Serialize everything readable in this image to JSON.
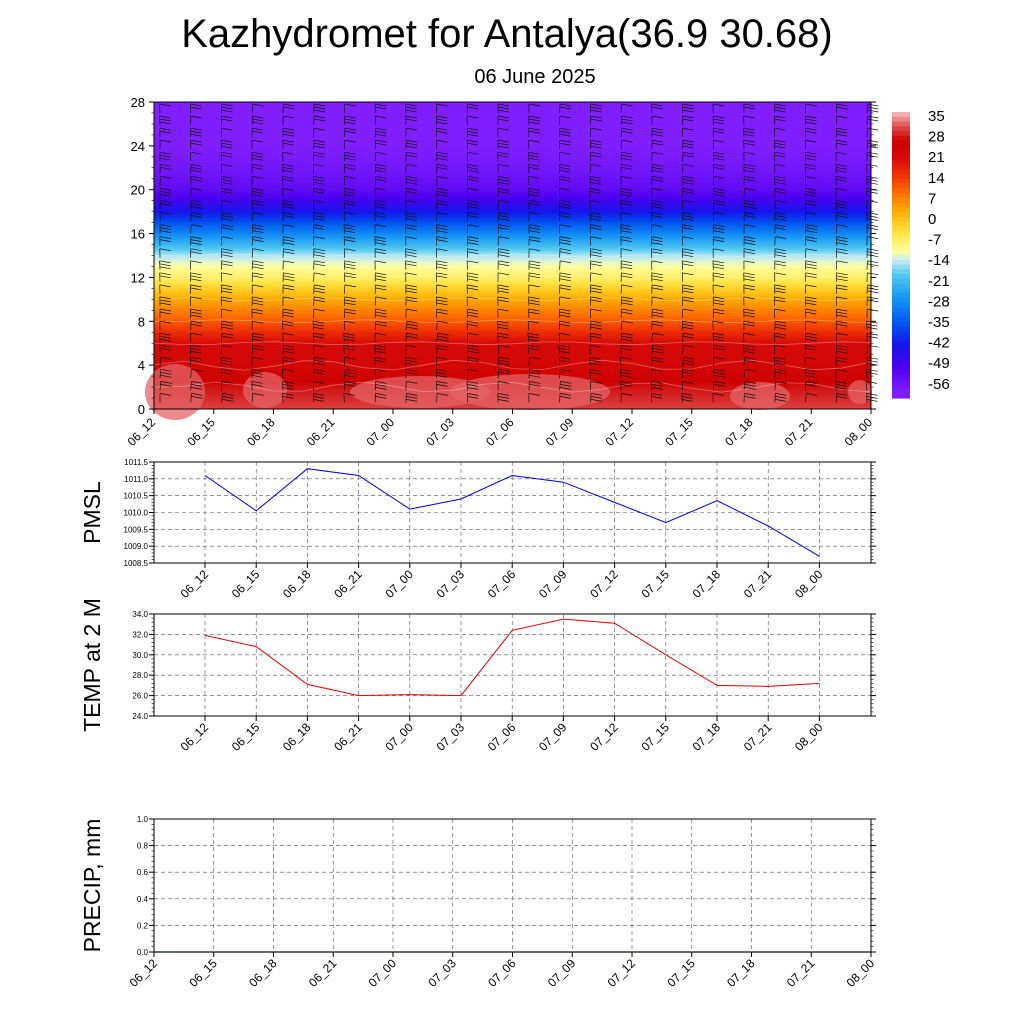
{
  "header": {
    "title": "Kazhydromet for Antalya(36.9 30.68)",
    "subtitle": "06 June 2025"
  },
  "time_labels": [
    "06_12",
    "06_15",
    "06_18",
    "06_21",
    "07_00",
    "07_03",
    "07_06",
    "07_09",
    "07_12",
    "07_15",
    "07_18",
    "07_21",
    "08_00"
  ],
  "colorbar": {
    "labels": [
      "35",
      "28",
      "21",
      "14",
      "7",
      "0",
      "-7",
      "-14",
      "-21",
      "-28",
      "-35",
      "-42",
      "-49",
      "-56"
    ]
  },
  "chart_data": [
    {
      "type": "heatmap",
      "description_of_field": "temperature by level with wind barbs",
      "x": [
        "06_12",
        "06_15",
        "06_18",
        "06_21",
        "07_00",
        "07_03",
        "07_06",
        "07_09",
        "07_12",
        "07_15",
        "07_18",
        "07_21",
        "08_00"
      ],
      "ylim": [
        0,
        28
      ],
      "yticks": [
        "0",
        "4",
        "8",
        "12",
        "16",
        "20",
        "24",
        "28"
      ],
      "zlim": [
        -56,
        35
      ]
    },
    {
      "type": "line",
      "ylabel": "PMSL",
      "x": [
        "06_12",
        "06_15",
        "06_18",
        "06_21",
        "07_00",
        "07_03",
        "07_06",
        "07_09",
        "07_12",
        "07_15",
        "07_18",
        "07_21",
        "08_00"
      ],
      "values": [
        1011.1,
        1010.05,
        1011.3,
        1011.1,
        1010.1,
        1010.4,
        1011.1,
        1010.9,
        1010.3,
        1009.7,
        1010.35,
        1009.6,
        1008.7
      ],
      "ylim": [
        1008.5,
        1011.5
      ],
      "yticks": [
        "1008.5",
        "1009.0",
        "1009.5",
        "1010.0",
        "1010.5",
        "1011.0",
        "1011.5"
      ],
      "color": "#0000ee"
    },
    {
      "type": "line",
      "ylabel": "TEMP at 2 M",
      "x": [
        "06_12",
        "06_15",
        "06_18",
        "06_21",
        "07_00",
        "07_03",
        "07_06",
        "07_09",
        "07_12",
        "07_15",
        "07_18",
        "07_21",
        "08_00"
      ],
      "values": [
        31.9,
        30.8,
        27.1,
        26.0,
        26.1,
        26.0,
        32.4,
        33.5,
        33.1,
        30.0,
        27.0,
        26.9,
        27.2
      ],
      "ylim": [
        24.0,
        34.0
      ],
      "yticks": [
        "24.0",
        "26.0",
        "28.0",
        "30.0",
        "32.0",
        "34.0"
      ],
      "color": "#ee0000"
    },
    {
      "type": "line",
      "ylabel": "PRECIP, mm",
      "x": [
        "06_12",
        "06_15",
        "06_18",
        "06_21",
        "07_00",
        "07_03",
        "07_06",
        "07_09",
        "07_12",
        "07_15",
        "07_18",
        "07_21",
        "08_00"
      ],
      "values": [
        0,
        0,
        0,
        0,
        0,
        0,
        0,
        0,
        0,
        0,
        0,
        0,
        0
      ],
      "ylim": [
        0.0,
        1.0
      ],
      "yticks": [
        "0.0",
        "0.2",
        "0.4",
        "0.6",
        "0.8",
        "1.0"
      ],
      "color": "#008800"
    }
  ]
}
